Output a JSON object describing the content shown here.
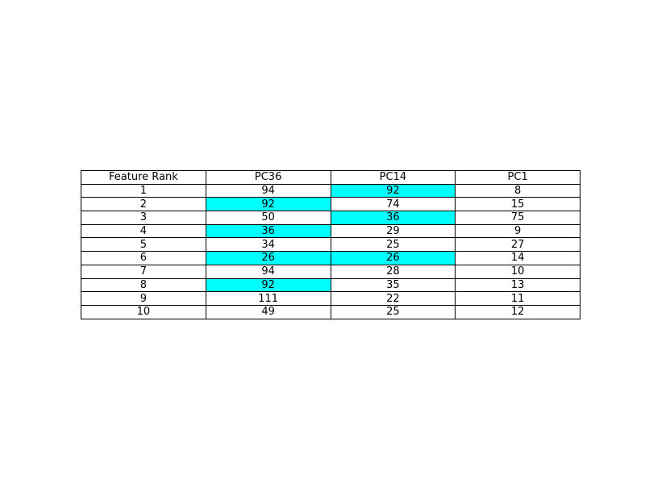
{
  "chart_data": {
    "type": "table",
    "columns": [
      "Feature Rank",
      "PC36",
      "PC14",
      "PC1"
    ],
    "rows": [
      [
        "1",
        "94",
        "92",
        "8"
      ],
      [
        "2",
        "92",
        "74",
        "15"
      ],
      [
        "3",
        "50",
        "36",
        "75"
      ],
      [
        "4",
        "36",
        "29",
        "9"
      ],
      [
        "5",
        "34",
        "25",
        "27"
      ],
      [
        "6",
        "26",
        "26",
        "14"
      ],
      [
        "7",
        "94",
        "28",
        "10"
      ],
      [
        "8",
        "92",
        "35",
        "13"
      ],
      [
        "9",
        "111",
        "22",
        "11"
      ],
      [
        "10",
        "49",
        "25",
        "12"
      ]
    ],
    "highlighted_cells": [
      {
        "row": 0,
        "col": 2
      },
      {
        "row": 1,
        "col": 1
      },
      {
        "row": 2,
        "col": 2
      },
      {
        "row": 3,
        "col": 1
      },
      {
        "row": 5,
        "col": 1
      },
      {
        "row": 5,
        "col": 2
      },
      {
        "row": 7,
        "col": 1
      }
    ],
    "highlight_color": "#00ffff",
    "cell_color": "#ffffff",
    "border_color": "#000000"
  }
}
